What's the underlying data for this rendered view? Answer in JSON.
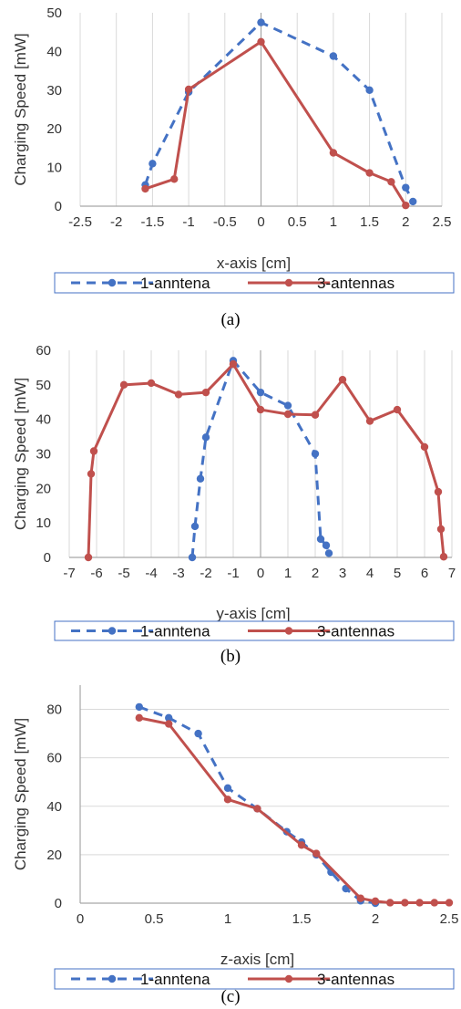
{
  "colors": {
    "series1": "#4472c4",
    "series2": "#c0504d",
    "grid": "#d9d9d9",
    "axis": "#a6a6a6",
    "legend_border": "#4472c4"
  },
  "chart_data": [
    {
      "type": "scatter",
      "caption": "(a)",
      "xlabel": "x-axis [cm]",
      "ylabel": "Charging Speed [mW]",
      "xlim": [
        -2.5,
        2.5
      ],
      "ylim": [
        0,
        50
      ],
      "xticks": [
        "-2.5",
        "-2",
        "-1.5",
        "-1",
        "-0.5",
        "0",
        "0.5",
        "1",
        "1.5",
        "2",
        "2.5"
      ],
      "yticks": [
        "0",
        "10",
        "20",
        "30",
        "40",
        "50"
      ],
      "grid": "vertical",
      "legend": "bottom",
      "series": [
        {
          "name": "1-anntena",
          "style": "dashed",
          "points": [
            [
              -1.6,
              5.5
            ],
            [
              -1.5,
              11
            ],
            [
              -1,
              29.5
            ],
            [
              0,
              47.5
            ],
            [
              1,
              38.8
            ],
            [
              1.5,
              30
            ],
            [
              2,
              4.8
            ],
            [
              2.1,
              1.2
            ]
          ]
        },
        {
          "name": "3-antennas",
          "style": "solid",
          "points": [
            [
              -1.6,
              4.5
            ],
            [
              -1.2,
              7
            ],
            [
              -1,
              30.2
            ],
            [
              0,
              42.5
            ],
            [
              1,
              13.8
            ],
            [
              1.5,
              8.6
            ],
            [
              1.8,
              6.3
            ],
            [
              2,
              0.2
            ]
          ]
        }
      ]
    },
    {
      "type": "scatter",
      "caption": "(b)",
      "xlabel": "y-axis [cm]",
      "ylabel": "Charging Speed [mW]",
      "xlim": [
        -7,
        7
      ],
      "ylim": [
        0,
        60
      ],
      "xticks": [
        "-7",
        "-6",
        "-5",
        "-4",
        "-3",
        "-2",
        "-1",
        "0",
        "1",
        "2",
        "3",
        "4",
        "5",
        "6",
        "7"
      ],
      "yticks": [
        "0",
        "10",
        "20",
        "30",
        "40",
        "50",
        "60"
      ],
      "grid": "vertical",
      "legend": "bottom",
      "series": [
        {
          "name": "1-anntena",
          "style": "dashed",
          "points": [
            [
              -2.5,
              0
            ],
            [
              -2.4,
              9
            ],
            [
              -2.2,
              22.8
            ],
            [
              -2,
              34.8
            ],
            [
              -1,
              57
            ],
            [
              0,
              47.8
            ],
            [
              1,
              44
            ],
            [
              2,
              30
            ],
            [
              2.2,
              5.3
            ],
            [
              2.4,
              3.5
            ],
            [
              2.5,
              1.2
            ]
          ]
        },
        {
          "name": "3-antennas",
          "style": "solid",
          "points": [
            [
              -6.3,
              0
            ],
            [
              -6.2,
              24.2
            ],
            [
              -6.1,
              30.8
            ],
            [
              -5,
              50
            ],
            [
              -4,
              50.5
            ],
            [
              -3,
              47.2
            ],
            [
              -2,
              47.8
            ],
            [
              -1,
              56
            ],
            [
              0,
              42.8
            ],
            [
              1,
              41.5
            ],
            [
              2,
              41.3
            ],
            [
              3,
              51.5
            ],
            [
              4,
              39.5
            ],
            [
              5,
              42.8
            ],
            [
              6,
              32
            ],
            [
              6.5,
              19
            ],
            [
              6.6,
              8.2
            ],
            [
              6.7,
              0.2
            ]
          ]
        }
      ]
    },
    {
      "type": "scatter",
      "caption": "(c)",
      "xlabel": "z-axis [cm]",
      "ylabel": "Charging Speed [mW]",
      "xlim": [
        0,
        2.5
      ],
      "ylim": [
        0,
        90
      ],
      "xticks": [
        "0",
        "0.5",
        "1",
        "1.5",
        "2",
        "2.5"
      ],
      "yticks": [
        "0",
        "20",
        "40",
        "60",
        "80"
      ],
      "grid": "horizontal",
      "legend": "bottom",
      "series": [
        {
          "name": "1-anntena",
          "style": "dashed",
          "points": [
            [
              0.4,
              81
            ],
            [
              0.6,
              76.5
            ],
            [
              0.8,
              70
            ],
            [
              1,
              47.5
            ],
            [
              1.2,
              39
            ],
            [
              1.4,
              29.5
            ],
            [
              1.5,
              25.2
            ],
            [
              1.6,
              20
            ],
            [
              1.7,
              12.8
            ],
            [
              1.8,
              6
            ],
            [
              1.9,
              1
            ],
            [
              2,
              0
            ]
          ]
        },
        {
          "name": "3-antennas",
          "style": "solid",
          "points": [
            [
              0.4,
              76.5
            ],
            [
              0.6,
              74
            ],
            [
              1,
              42.8
            ],
            [
              1.2,
              39
            ],
            [
              1.5,
              24
            ],
            [
              1.6,
              20.5
            ],
            [
              1.9,
              2
            ],
            [
              2,
              0.8
            ],
            [
              2.1,
              0.2
            ],
            [
              2.2,
              0.2
            ],
            [
              2.3,
              0.2
            ],
            [
              2.4,
              0.2
            ],
            [
              2.5,
              0.2
            ]
          ]
        }
      ]
    }
  ]
}
